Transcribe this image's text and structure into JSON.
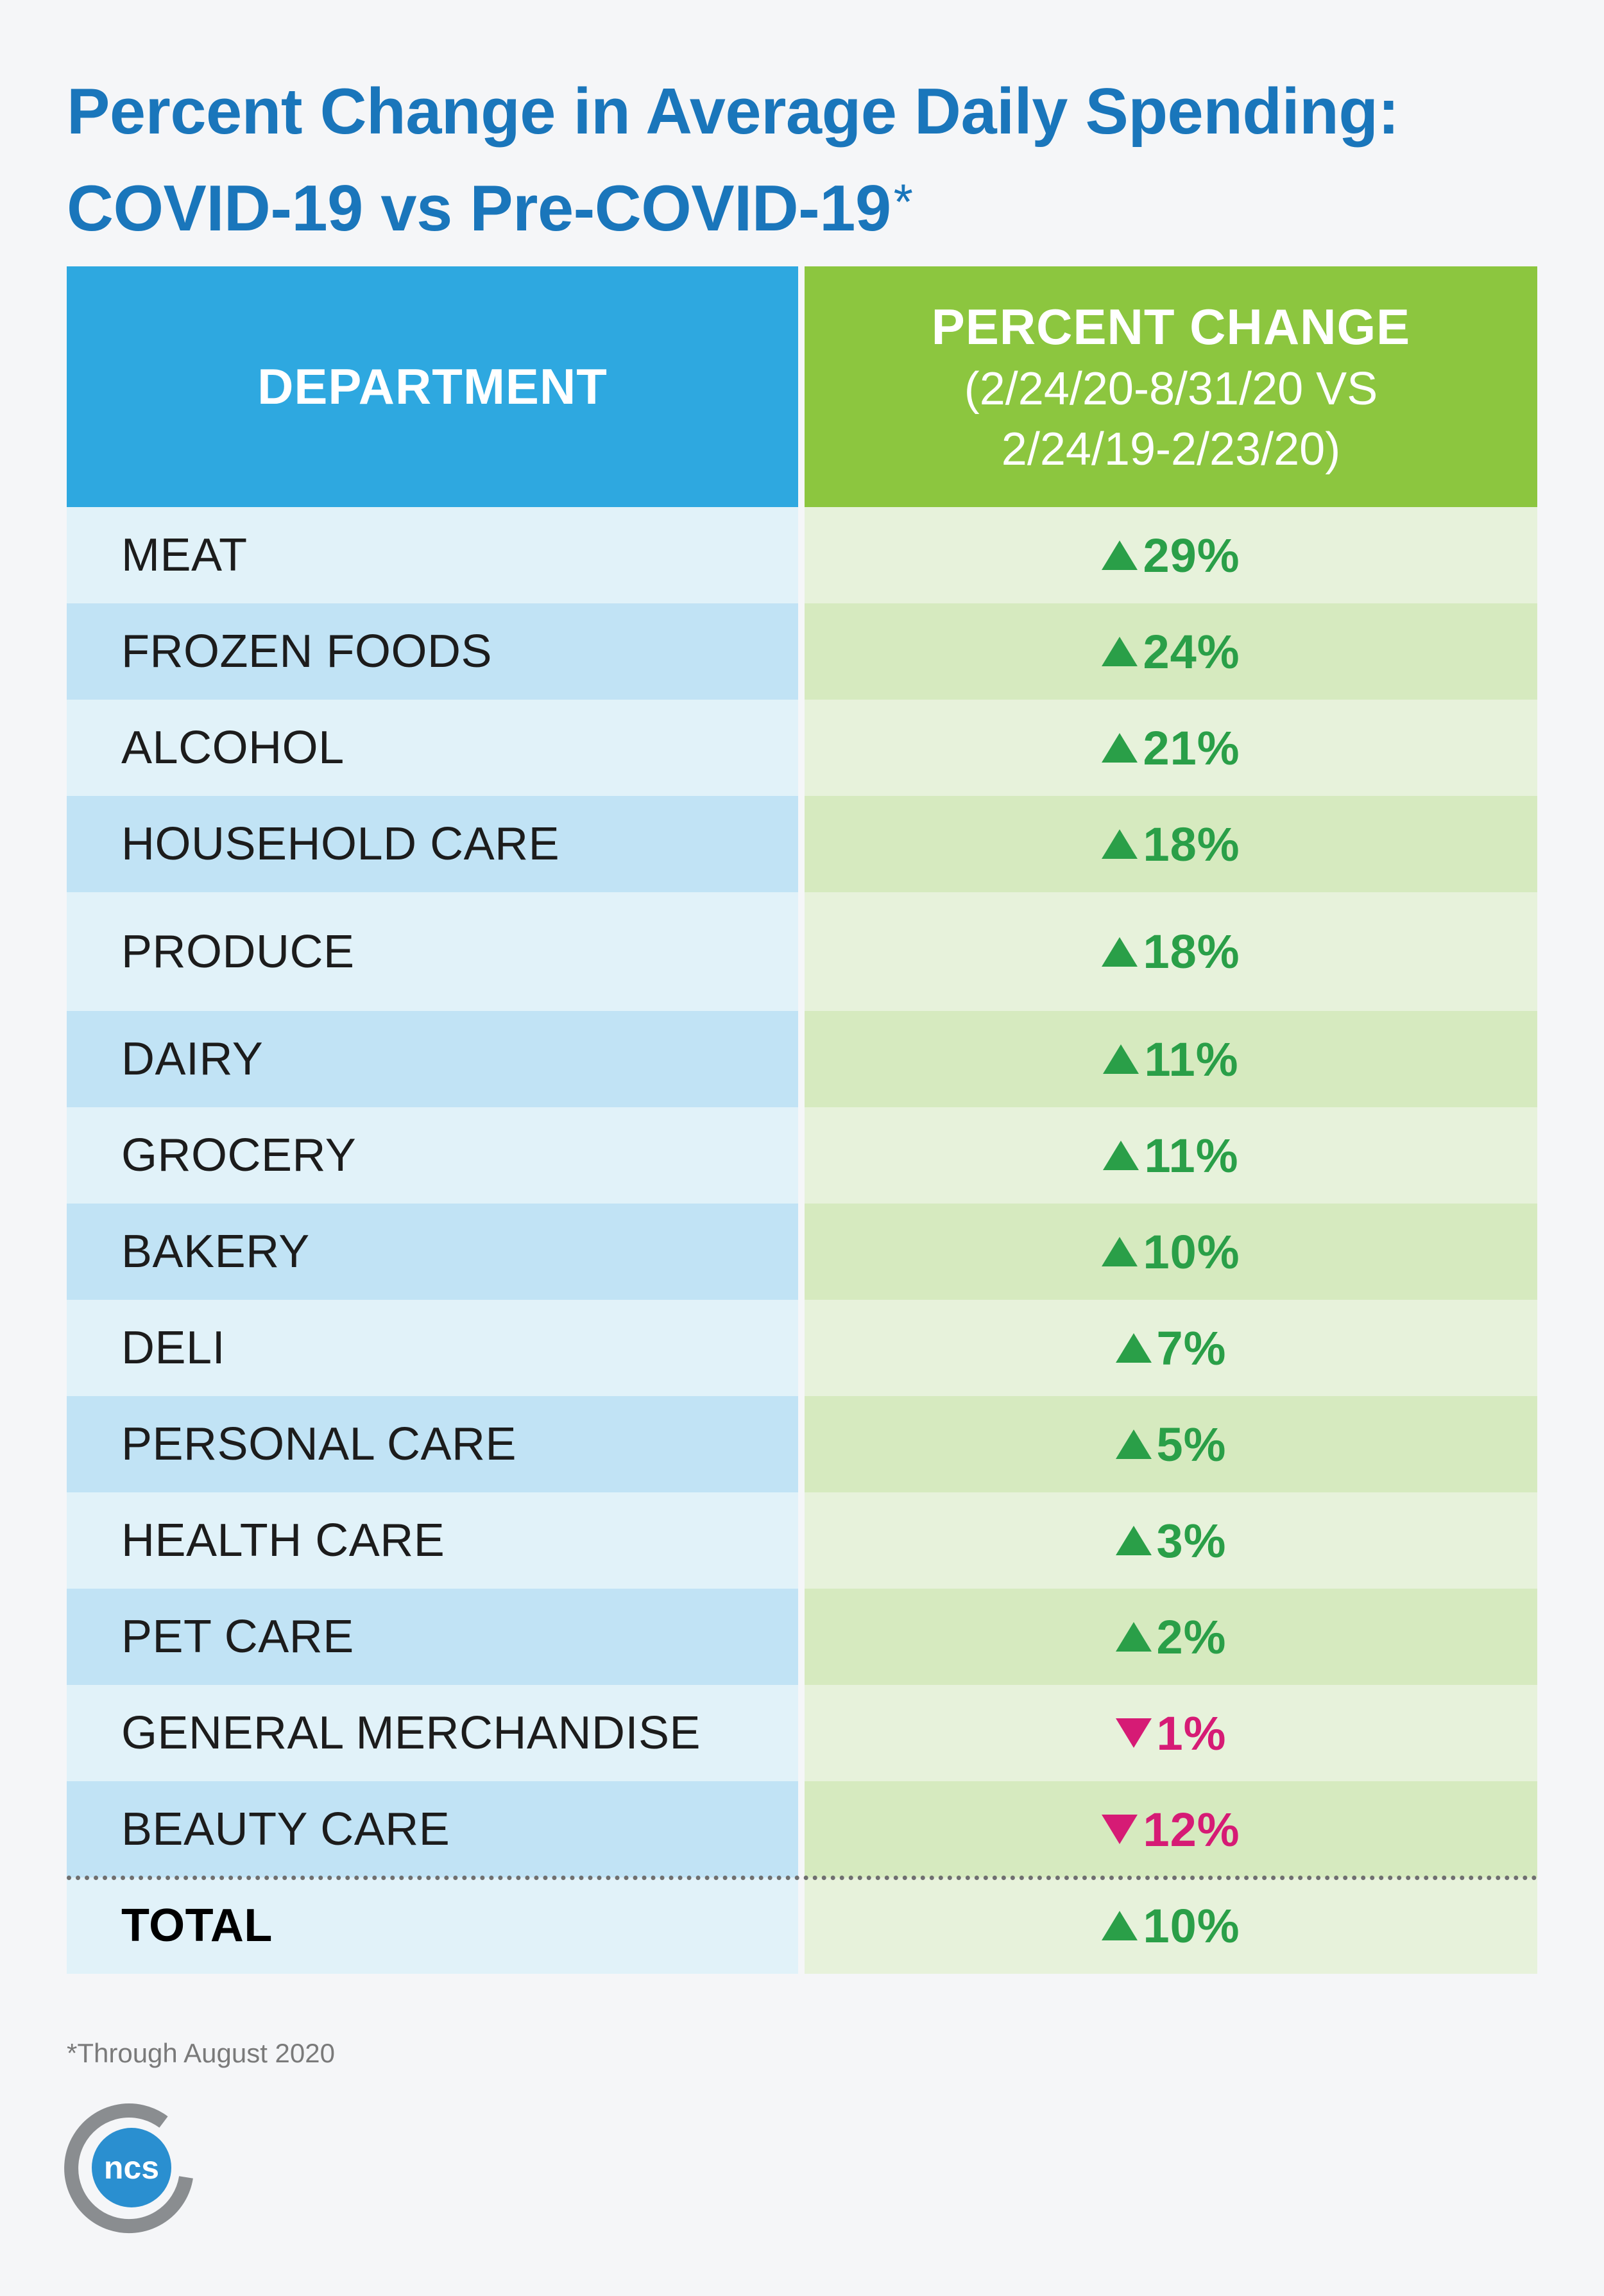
{
  "title": {
    "line1": "Percent Change in Average Daily Spending:",
    "line2": "COVID-19 vs Pre-COVID-19",
    "asterisk": "*"
  },
  "header": {
    "department": "DEPARTMENT",
    "percent_change": "PERCENT CHANGE",
    "period_line1": "(2/24/20-8/31/20 VS",
    "period_line2": "2/24/19-2/23/20)"
  },
  "colors": {
    "title": "#1a76bb",
    "header_left": "#2ea8e0",
    "header_right": "#8cc63f",
    "increase": "#2a9f48",
    "decrease": "#d61b75"
  },
  "chart_data": {
    "type": "table",
    "title": "Percent Change in Average Daily Spending: COVID-19 vs Pre-COVID-19*",
    "columns": [
      "DEPARTMENT",
      "PERCENT CHANGE (2/24/20-8/31/20 VS 2/24/19-2/23/20)"
    ],
    "rows": [
      {
        "department": "MEAT",
        "direction": "up",
        "value": 29,
        "label": "29%"
      },
      {
        "department": "FROZEN FOODS",
        "direction": "up",
        "value": 24,
        "label": "24%"
      },
      {
        "department": "ALCOHOL",
        "direction": "up",
        "value": 21,
        "label": "21%"
      },
      {
        "department": "HOUSEHOLD CARE",
        "direction": "up",
        "value": 18,
        "label": "18%"
      },
      {
        "department": "PRODUCE",
        "direction": "up",
        "value": 18,
        "label": "18%"
      },
      {
        "department": "DAIRY",
        "direction": "up",
        "value": 11,
        "label": "11%"
      },
      {
        "department": "GROCERY",
        "direction": "up",
        "value": 11,
        "label": "11%"
      },
      {
        "department": "BAKERY",
        "direction": "up",
        "value": 10,
        "label": "10%"
      },
      {
        "department": "DELI",
        "direction": "up",
        "value": 7,
        "label": "7%"
      },
      {
        "department": "PERSONAL CARE",
        "direction": "up",
        "value": 5,
        "label": "5%"
      },
      {
        "department": "HEALTH CARE",
        "direction": "up",
        "value": 3,
        "label": "3%"
      },
      {
        "department": "PET CARE",
        "direction": "up",
        "value": 2,
        "label": "2%"
      },
      {
        "department": "GENERAL MERCHANDISE",
        "direction": "down",
        "value": -1,
        "label": "1%"
      },
      {
        "department": "BEAUTY CARE",
        "direction": "down",
        "value": -12,
        "label": "12%"
      }
    ],
    "total": {
      "department": "TOTAL",
      "direction": "up",
      "value": 10,
      "label": "10%"
    }
  },
  "footnote": "*Through August 2020",
  "logo": {
    "text": "ncs",
    "icon": "ncs-logo-icon"
  }
}
